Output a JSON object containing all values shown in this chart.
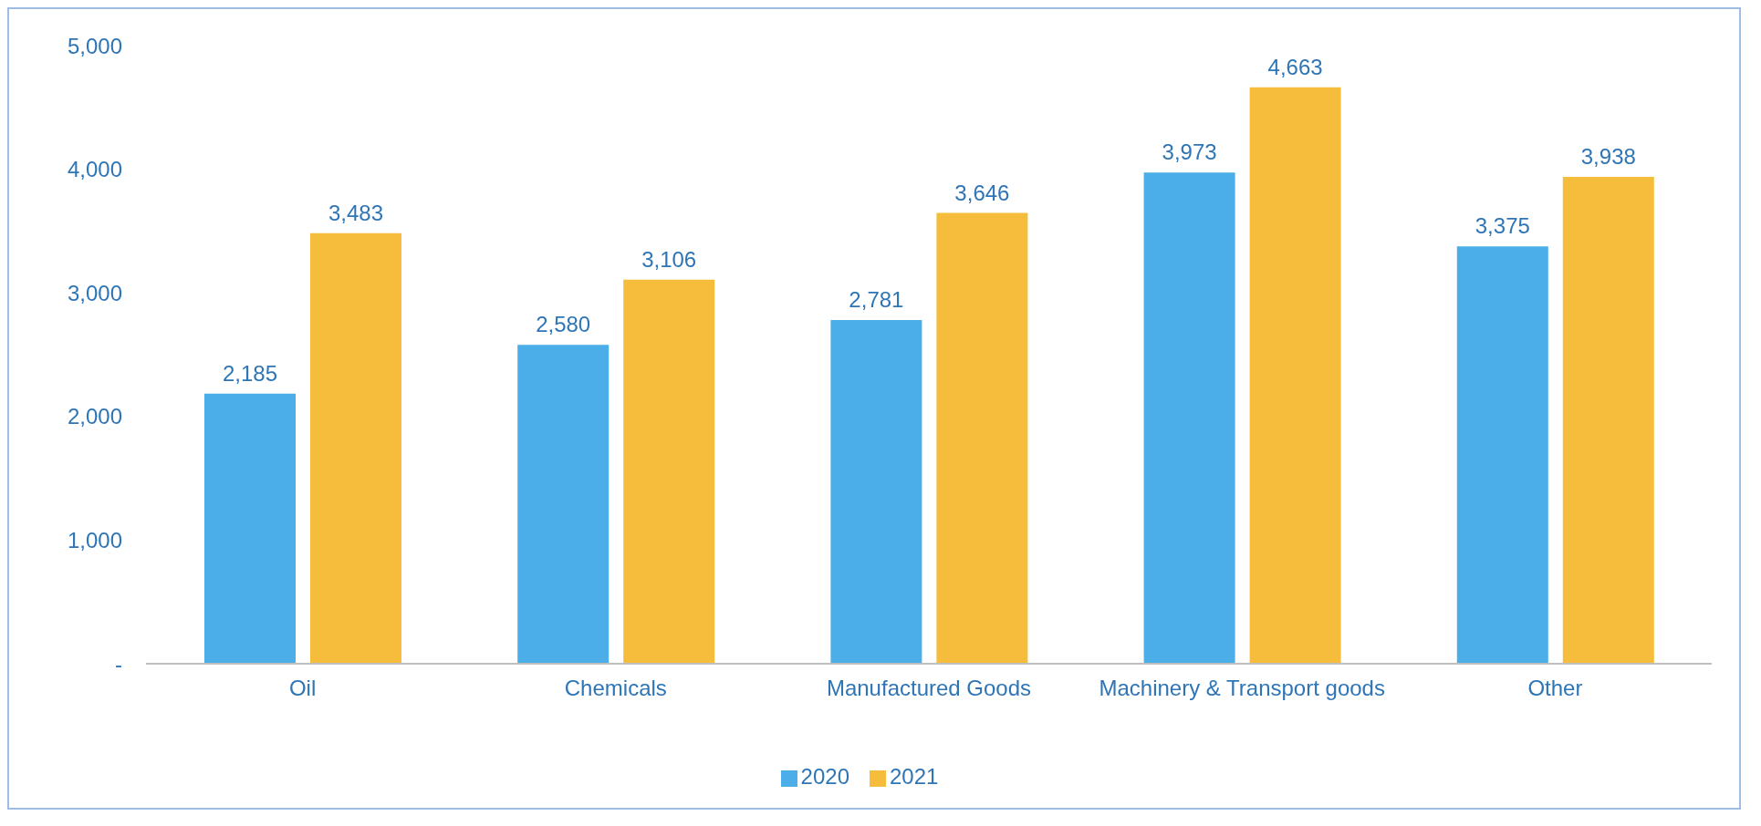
{
  "chart_data": {
    "type": "bar",
    "categories": [
      "Oil",
      "Chemicals",
      "Manufactured Goods",
      "Machinery & Transport goods",
      "Other"
    ],
    "series": [
      {
        "name": "2020",
        "color": "#4baee8",
        "values": [
          2185,
          2580,
          2781,
          3973,
          3375
        ],
        "value_labels": [
          "2,185",
          "2,580",
          "2,781",
          "3,973",
          "3,375"
        ]
      },
      {
        "name": "2021",
        "color": "#f6bd3c",
        "values": [
          3483,
          3106,
          3646,
          4663,
          3938
        ],
        "value_labels": [
          "3,483",
          "3,106",
          "3,646",
          "4,663",
          "3,938"
        ]
      }
    ],
    "ylim": [
      0,
      5000
    ],
    "yticks": [
      {
        "value": 0,
        "label": "-"
      },
      {
        "value": 1000,
        "label": "1,000"
      },
      {
        "value": 2000,
        "label": "2,000"
      },
      {
        "value": 3000,
        "label": "3,000"
      },
      {
        "value": 4000,
        "label": "4,000"
      },
      {
        "value": 5000,
        "label": "5,000"
      }
    ],
    "grid": false,
    "legend": "bottom"
  }
}
